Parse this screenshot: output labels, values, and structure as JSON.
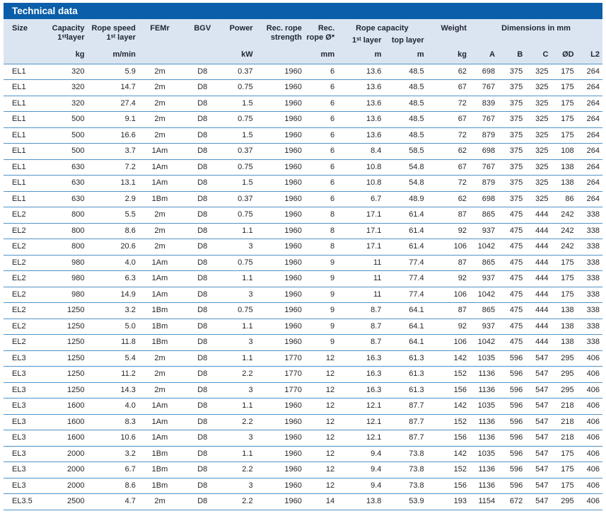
{
  "title_bar": {
    "title": "Technical data"
  },
  "colors": {
    "title_bar_bg": "#0b5ea9",
    "title_text": "#ffffff",
    "header_bg": "#dbe5f1",
    "row_border": "#4f93c8",
    "body_text": "#26262b"
  },
  "header": {
    "cols": {
      "size": "Size",
      "capacity_l1": "Capacity",
      "capacity_l2": "1ˢᵗlayer",
      "rope_speed_l1": "Rope speed",
      "rope_speed_l2": "1ˢᵗ layer",
      "fem": "FEMr",
      "bgv": "BGV",
      "power": "Power",
      "rec_rope_strength_l1": "Rec. rope",
      "rec_rope_strength_l2": "strength",
      "rec_rope_dia_l1": "Rec.",
      "rec_rope_dia_l2": "rope Ø*",
      "rope_capacity": "Rope capacity",
      "rope_capacity_sub1": "1ˢᵗ layer",
      "rope_capacity_sub2": "top layer",
      "weight": "Weight",
      "dimensions": "Dimensions in mm"
    },
    "units": {
      "capacity": "kg",
      "rope_speed": "m/min",
      "power": "kW",
      "rec_rope_dia": "mm",
      "rope_capacity_1st": "m",
      "rope_capacity_top": "m",
      "weight": "kg",
      "dim_a": "A",
      "dim_b": "B",
      "dim_c": "C",
      "dim_od": "ØD",
      "dim_l2": "L2"
    }
  },
  "table": {
    "col_keys": [
      "size",
      "capacity-kg",
      "rope-speed",
      "fem",
      "bgv",
      "power-kw",
      "rec-rope-strength",
      "rec-rope-dia-mm",
      "rope-capacity-1st-m",
      "rope-capacity-top-m",
      "weight-kg",
      "dim-a",
      "dim-b",
      "dim-c",
      "dim-od",
      "dim-l2"
    ],
    "col_align": [
      "l",
      "r",
      "r",
      "c",
      "c",
      "r",
      "r",
      "r",
      "r",
      "r",
      "r",
      "r",
      "r",
      "r",
      "r",
      "r"
    ],
    "rows": [
      [
        "EL1",
        "320",
        "5.9",
        "2m",
        "D8",
        "0.37",
        "1960",
        "6",
        "13.6",
        "48.5",
        "62",
        "698",
        "375",
        "325",
        "175",
        "264"
      ],
      [
        "EL1",
        "320",
        "14.7",
        "2m",
        "D8",
        "0.75",
        "1960",
        "6",
        "13.6",
        "48.5",
        "67",
        "767",
        "375",
        "325",
        "175",
        "264"
      ],
      [
        "EL1",
        "320",
        "27.4",
        "2m",
        "D8",
        "1.5",
        "1960",
        "6",
        "13.6",
        "48.5",
        "72",
        "839",
        "375",
        "325",
        "175",
        "264"
      ],
      [
        "EL1",
        "500",
        "9.1",
        "2m",
        "D8",
        "0.75",
        "1960",
        "6",
        "13.6",
        "48.5",
        "67",
        "767",
        "375",
        "325",
        "175",
        "264"
      ],
      [
        "EL1",
        "500",
        "16.6",
        "2m",
        "D8",
        "1.5",
        "1960",
        "6",
        "13.6",
        "48.5",
        "72",
        "879",
        "375",
        "325",
        "175",
        "264"
      ],
      [
        "EL1",
        "500",
        "3.7",
        "1Am",
        "D8",
        "0.37",
        "1960",
        "6",
        "8.4",
        "58.5",
        "62",
        "698",
        "375",
        "325",
        "108",
        "264"
      ],
      [
        "EL1",
        "630",
        "7.2",
        "1Am",
        "D8",
        "0.75",
        "1960",
        "6",
        "10.8",
        "54.8",
        "67",
        "767",
        "375",
        "325",
        "138",
        "264"
      ],
      [
        "EL1",
        "630",
        "13.1",
        "1Am",
        "D8",
        "1.5",
        "1960",
        "6",
        "10.8",
        "54.8",
        "72",
        "879",
        "375",
        "325",
        "138",
        "264"
      ],
      [
        "EL1",
        "630",
        "2.9",
        "1Bm",
        "D8",
        "0.37",
        "1960",
        "6",
        "6.7",
        "48.9",
        "62",
        "698",
        "375",
        "325",
        "86",
        "264"
      ],
      [
        "EL2",
        "800",
        "5.5",
        "2m",
        "D8",
        "0.75",
        "1960",
        "8",
        "17.1",
        "61.4",
        "87",
        "865",
        "475",
        "444",
        "242",
        "338"
      ],
      [
        "EL2",
        "800",
        "8.6",
        "2m",
        "D8",
        "1.1",
        "1960",
        "8",
        "17.1",
        "61.4",
        "92",
        "937",
        "475",
        "444",
        "242",
        "338"
      ],
      [
        "EL2",
        "800",
        "20.6",
        "2m",
        "D8",
        "3",
        "1960",
        "8",
        "17.1",
        "61.4",
        "106",
        "1042",
        "475",
        "444",
        "242",
        "338"
      ],
      [
        "EL2",
        "980",
        "4.0",
        "1Am",
        "D8",
        "0.75",
        "1960",
        "9",
        "11",
        "77.4",
        "87",
        "865",
        "475",
        "444",
        "175",
        "338"
      ],
      [
        "EL2",
        "980",
        "6.3",
        "1Am",
        "D8",
        "1.1",
        "1960",
        "9",
        "11",
        "77.4",
        "92",
        "937",
        "475",
        "444",
        "175",
        "338"
      ],
      [
        "EL2",
        "980",
        "14.9",
        "1Am",
        "D8",
        "3",
        "1960",
        "9",
        "11",
        "77.4",
        "106",
        "1042",
        "475",
        "444",
        "175",
        "338"
      ],
      [
        "EL2",
        "1250",
        "3.2",
        "1Bm",
        "D8",
        "0.75",
        "1960",
        "9",
        "8.7",
        "64.1",
        "87",
        "865",
        "475",
        "444",
        "138",
        "338"
      ],
      [
        "EL2",
        "1250",
        "5.0",
        "1Bm",
        "D8",
        "1.1",
        "1960",
        "9",
        "8.7",
        "64.1",
        "92",
        "937",
        "475",
        "444",
        "138",
        "338"
      ],
      [
        "EL2",
        "1250",
        "11.8",
        "1Bm",
        "D8",
        "3",
        "1960",
        "9",
        "8.7",
        "64.1",
        "106",
        "1042",
        "475",
        "444",
        "138",
        "338"
      ],
      [
        "EL3",
        "1250",
        "5.4",
        "2m",
        "D8",
        "1.1",
        "1770",
        "12",
        "16.3",
        "61.3",
        "142",
        "1035",
        "596",
        "547",
        "295",
        "406"
      ],
      [
        "EL3",
        "1250",
        "11.2",
        "2m",
        "D8",
        "2.2",
        "1770",
        "12",
        "16.3",
        "61.3",
        "152",
        "1136",
        "596",
        "547",
        "295",
        "406"
      ],
      [
        "EL3",
        "1250",
        "14.3",
        "2m",
        "D8",
        "3",
        "1770",
        "12",
        "16.3",
        "61.3",
        "156",
        "1136",
        "596",
        "547",
        "295",
        "406"
      ],
      [
        "EL3",
        "1600",
        "4.0",
        "1Am",
        "D8",
        "1.1",
        "1960",
        "12",
        "12.1",
        "87.7",
        "142",
        "1035",
        "596",
        "547",
        "218",
        "406"
      ],
      [
        "EL3",
        "1600",
        "8.3",
        "1Am",
        "D8",
        "2.2",
        "1960",
        "12",
        "12.1",
        "87.7",
        "152",
        "1136",
        "596",
        "547",
        "218",
        "406"
      ],
      [
        "EL3",
        "1600",
        "10.6",
        "1Am",
        "D8",
        "3",
        "1960",
        "12",
        "12.1",
        "87.7",
        "156",
        "1136",
        "596",
        "547",
        "218",
        "406"
      ],
      [
        "EL3",
        "2000",
        "3.2",
        "1Bm",
        "D8",
        "1.1",
        "1960",
        "12",
        "9.4",
        "73.8",
        "142",
        "1035",
        "596",
        "547",
        "175",
        "406"
      ],
      [
        "EL3",
        "2000",
        "6.7",
        "1Bm",
        "D8",
        "2.2",
        "1960",
        "12",
        "9.4",
        "73.8",
        "152",
        "1136",
        "596",
        "547",
        "175",
        "406"
      ],
      [
        "EL3",
        "2000",
        "8.6",
        "1Bm",
        "D8",
        "3",
        "1960",
        "12",
        "9.4",
        "73.8",
        "156",
        "1136",
        "596",
        "547",
        "175",
        "406"
      ],
      [
        "EL3.5",
        "2500",
        "4.7",
        "2m",
        "D8",
        "2.2",
        "1960",
        "14",
        "13.8",
        "53.9",
        "193",
        "1154",
        "672",
        "547",
        "295",
        "406"
      ]
    ]
  }
}
